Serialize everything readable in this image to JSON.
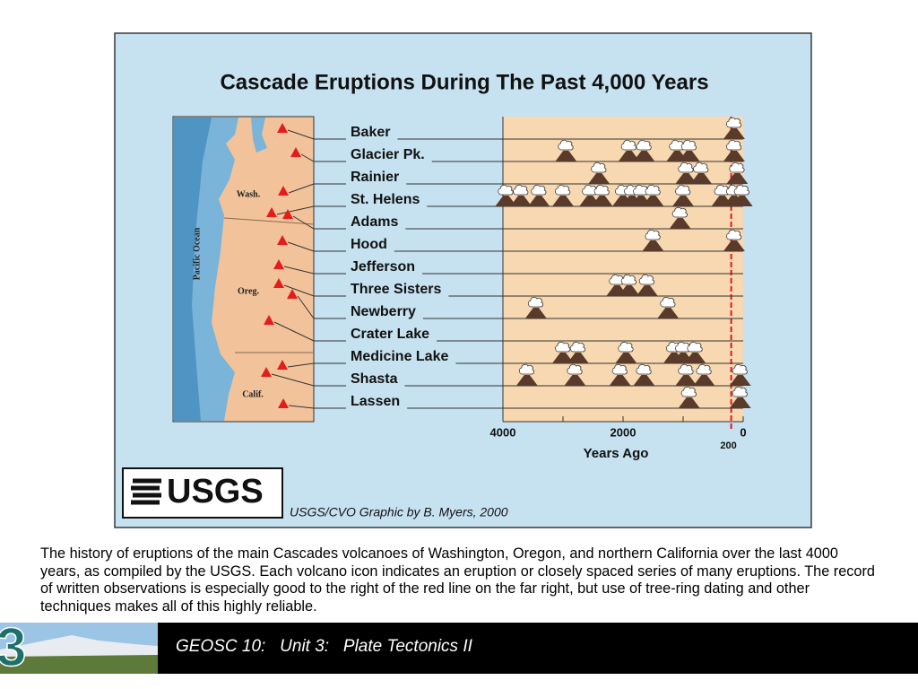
{
  "chart_data": {
    "type": "timeline",
    "title": "Cascade Eruptions During The Past 4,000 Years",
    "x_label": "Years Ago",
    "categories": [
      "Baker",
      "Glacier Pk.",
      "Rainier",
      "St. Helens",
      "Adams",
      "Hood",
      "Jefferson",
      "Three Sisters",
      "Newberry",
      "Crater Lake",
      "Medicine Lake",
      "Shasta",
      "Lassen"
    ],
    "events": [
      [
        150
      ],
      [
        2950,
        1900,
        1650,
        1100,
        900,
        150
      ],
      [
        2400,
        950,
        700,
        100
      ],
      [
        3950,
        3700,
        3400,
        3000,
        2550,
        2350,
        2000,
        1850,
        1700,
        1500,
        1000,
        350,
        150,
        20
      ],
      [
        1050
      ],
      [
        1500,
        150
      ],
      [],
      [
        2100,
        1900,
        1600
      ],
      [
        3450,
        1250
      ],
      [],
      [
        3000,
        2750,
        1950,
        1150,
        1000,
        800
      ],
      [
        3600,
        2800,
        2050,
        1650,
        950,
        650,
        50
      ],
      [
        900,
        50
      ]
    ],
    "xlim": [
      4000,
      0
    ],
    "xticks": [
      4000,
      2000,
      0
    ],
    "minor_xticks": [
      3000,
      1000
    ],
    "reference_line": {
      "value": 200,
      "color": "#e8141b"
    },
    "map_labels": [
      "Wash.",
      "Oreg.",
      "Calif.",
      "Pacific Ocean"
    ]
  },
  "logo": "USGS",
  "credit": "USGS/CVO Graphic by B. Myers, 2000",
  "caption": "The history of eruptions of the main Cascades volcanoes of Washington, Oregon, and northern California over the last 4000 years, as compiled by the USGS. Each volcano icon indicates an eruption or closely spaced series of many eruptions. The record of written observations is especially good to the right of the red line on the far right, but use of tree-ring dating and other techniques makes all of this highly reliable.",
  "footer": {
    "badge": "3",
    "title": "GEOSC 10:   Unit 3:   Plate Tectonics II"
  }
}
